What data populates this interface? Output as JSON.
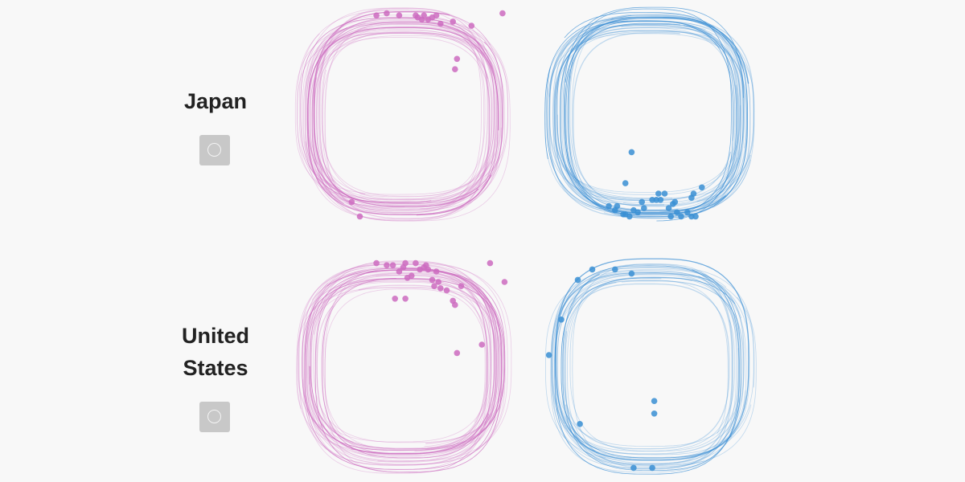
{
  "rows": [
    {
      "country": "Japan",
      "label_lines": [
        "Japan"
      ],
      "toggle_icon": "circle-icon"
    },
    {
      "country": "United States",
      "label_lines": [
        "United",
        "States"
      ],
      "toggle_icon": "circle-icon"
    }
  ],
  "colors": {
    "pink": "#cc6bbf",
    "blue": "#3a8fd4",
    "background": "#f8f8f8",
    "toggle": "#c8c8c8"
  },
  "chart_data": [
    {
      "type": "scatter",
      "panel": "Japan left",
      "color": "#cc6bbf",
      "n_traces": 40,
      "xlim": [
        0,
        100
      ],
      "ylim": [
        0,
        100
      ],
      "grid": false,
      "points": [
        [
          37,
          2
        ],
        [
          42,
          1
        ],
        [
          48,
          2
        ],
        [
          56,
          2
        ],
        [
          57,
          3
        ],
        [
          59,
          4
        ],
        [
          60,
          2
        ],
        [
          62,
          4
        ],
        [
          64,
          3
        ],
        [
          66,
          2
        ],
        [
          68,
          6
        ],
        [
          74,
          5
        ],
        [
          83,
          7
        ],
        [
          98,
          1
        ],
        [
          76,
          23
        ],
        [
          75,
          28
        ],
        [
          25,
          92
        ],
        [
          29,
          99
        ]
      ]
    },
    {
      "type": "scatter",
      "panel": "Japan right",
      "color": "#3a8fd4",
      "n_traces": 36,
      "xlim": [
        0,
        100
      ],
      "ylim": [
        0,
        100
      ],
      "grid": false,
      "points": [
        [
          41,
          68
        ],
        [
          38,
          83
        ],
        [
          37,
          98
        ],
        [
          33,
          96
        ],
        [
          30,
          94
        ],
        [
          34,
          94
        ],
        [
          38,
          98
        ],
        [
          40,
          99
        ],
        [
          42,
          96
        ],
        [
          44,
          97
        ],
        [
          46,
          92
        ],
        [
          47,
          95
        ],
        [
          51,
          91
        ],
        [
          53,
          91
        ],
        [
          54,
          88
        ],
        [
          55,
          91
        ],
        [
          57,
          88
        ],
        [
          59,
          95
        ],
        [
          60,
          99
        ],
        [
          61,
          93
        ],
        [
          62,
          92
        ],
        [
          63,
          97
        ],
        [
          65,
          99
        ],
        [
          68,
          97
        ],
        [
          70,
          99
        ],
        [
          72,
          99
        ],
        [
          70,
          90
        ],
        [
          71,
          88
        ],
        [
          75,
          85
        ]
      ]
    },
    {
      "type": "scatter",
      "panel": "United States left",
      "color": "#cc6bbf",
      "n_traces": 38,
      "xlim": [
        0,
        100
      ],
      "ylim": [
        0,
        100
      ],
      "grid": false,
      "points": [
        [
          37,
          1
        ],
        [
          42,
          2
        ],
        [
          45,
          2
        ],
        [
          48,
          5
        ],
        [
          50,
          3
        ],
        [
          51,
          1
        ],
        [
          52,
          8
        ],
        [
          54,
          7
        ],
        [
          56,
          1
        ],
        [
          58,
          4
        ],
        [
          60,
          3
        ],
        [
          61,
          2
        ],
        [
          62,
          4
        ],
        [
          66,
          5
        ],
        [
          64,
          9
        ],
        [
          65,
          12
        ],
        [
          67,
          10
        ],
        [
          68,
          13
        ],
        [
          71,
          14
        ],
        [
          74,
          19
        ],
        [
          78,
          12
        ],
        [
          92,
          1
        ],
        [
          99,
          10
        ],
        [
          51,
          18
        ],
        [
          46,
          18
        ],
        [
          75,
          21
        ],
        [
          88,
          40
        ],
        [
          76,
          44
        ]
      ]
    },
    {
      "type": "scatter",
      "panel": "United States right",
      "color": "#3a8fd4",
      "n_traces": 26,
      "xlim": [
        0,
        100
      ],
      "ylim": [
        0,
        100
      ],
      "grid": false,
      "points": [
        [
          15,
          9
        ],
        [
          22,
          4
        ],
        [
          33,
          4
        ],
        [
          41,
          6
        ],
        [
          7,
          28
        ],
        [
          1,
          45
        ],
        [
          52,
          67
        ],
        [
          52,
          73
        ],
        [
          16,
          78
        ],
        [
          42,
          99
        ],
        [
          51,
          99
        ]
      ]
    }
  ]
}
